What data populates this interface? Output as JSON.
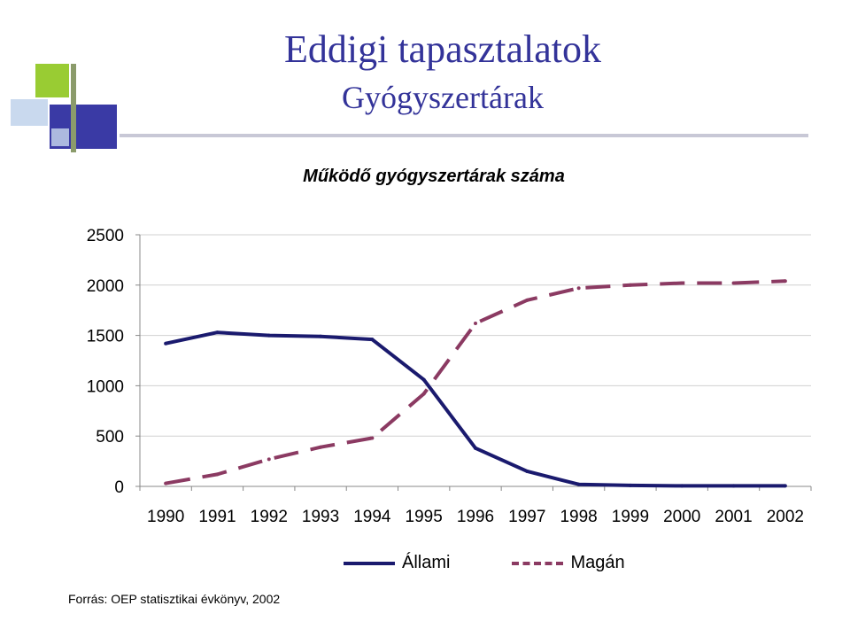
{
  "slide": {
    "title": "Eddigi tapasztalatok",
    "subtitle": "Gyógyszertárak",
    "source": "Forrás: OEP statisztikai évkönyv, 2002",
    "colors": {
      "title": "#333399",
      "deco_green": "#99cc33",
      "deco_blue": "#3333aa"
    }
  },
  "chart_data": {
    "type": "line",
    "title": "Működő gyógyszertárak száma",
    "xlabel": "",
    "ylabel": "",
    "categories": [
      "1990",
      "1991",
      "1992",
      "1993",
      "1994",
      "1995",
      "1996",
      "1997",
      "1998",
      "1999",
      "2000",
      "2001",
      "2002"
    ],
    "ylim": [
      0,
      2500
    ],
    "yticks": [
      0,
      500,
      1000,
      1500,
      2000,
      2500
    ],
    "grid": true,
    "legend_position": "bottom",
    "series": [
      {
        "name": "Állami",
        "color": "#1a1a6e",
        "dash": false,
        "values": [
          1420,
          1530,
          1500,
          1490,
          1460,
          1060,
          380,
          150,
          20,
          10,
          5,
          5,
          5
        ]
      },
      {
        "name": "Magán",
        "color": "#8b3a62",
        "dash": true,
        "values": [
          30,
          120,
          270,
          390,
          480,
          920,
          1620,
          1850,
          1970,
          2000,
          2020,
          2020,
          2040
        ]
      }
    ]
  }
}
